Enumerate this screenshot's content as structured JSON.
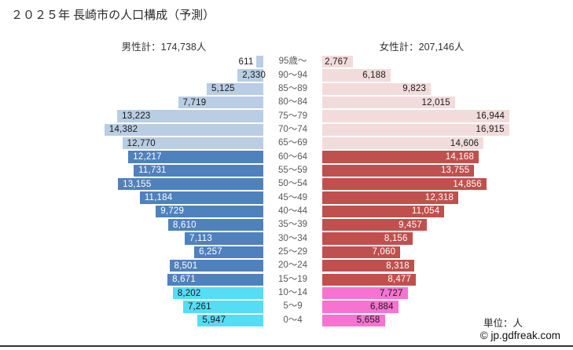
{
  "title": "２０２５年 長崎市の人口構成（予測）",
  "header": {
    "male_total_label": "男性計：174,738人",
    "female_total_label": "女性計：207,146人"
  },
  "footer": {
    "unit_label": "単位：人",
    "copyright": "© jp.gdfreak.com"
  },
  "colors": {
    "male_elderly": "#b9cde4",
    "male_working": "#4f81bd",
    "male_young": "#55ddf5",
    "female_elderly": "#f2dcdb",
    "female_working": "#c0504d",
    "female_young": "#f773d1",
    "dark_text": "#1a1a1a",
    "light_text": "#ffffff",
    "age_label_text": "#595959"
  },
  "color_groups": [
    {
      "rows": [
        0,
        6
      ],
      "male": "#b9cde4",
      "female": "#f2dcdb",
      "text": "dark"
    },
    {
      "rows": [
        7,
        16
      ],
      "male": "#4f81bd",
      "female": "#c0504d",
      "text": "light"
    },
    {
      "rows": [
        17,
        19
      ],
      "male": "#55ddf5",
      "female": "#f773d1",
      "text": "dark"
    }
  ],
  "chart_data": {
    "type": "bar",
    "subtype": "population-pyramid",
    "title": "２０２５年 長崎市の人口構成（予測）",
    "unit": "人",
    "axis_max": 18000,
    "legend_position": "none",
    "grid": false,
    "categories": [
      "95歳～",
      "90～94",
      "85～89",
      "80～84",
      "75～79",
      "70～74",
      "65～69",
      "60～64",
      "55～59",
      "50～54",
      "45～49",
      "40～44",
      "35～39",
      "30～34",
      "25～29",
      "20～24",
      "15～19",
      "10～14",
      "5～9",
      "0～4"
    ],
    "series": [
      {
        "name": "男性",
        "total": 174738,
        "values": [
          611,
          2330,
          5125,
          7719,
          13223,
          14382,
          12770,
          12217,
          11731,
          13155,
          11184,
          9729,
          8610,
          7113,
          6257,
          8501,
          8671,
          8202,
          7261,
          5947
        ]
      },
      {
        "name": "女性",
        "total": 207146,
        "values": [
          2767,
          6188,
          9823,
          12015,
          16944,
          16915,
          14606,
          14168,
          13755,
          14856,
          12318,
          11054,
          9457,
          8156,
          7060,
          8318,
          8477,
          7727,
          6884,
          5658
        ]
      }
    ]
  }
}
